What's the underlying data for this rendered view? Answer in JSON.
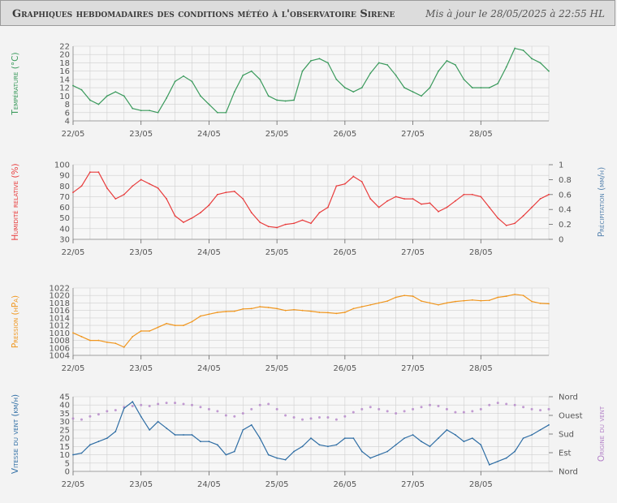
{
  "header": {
    "title": "Graphiques hebdomadaires des conditions météo à l'observatoire Sirene",
    "updated": "Mis à jour le 28/05/2025 à 22:55 HL"
  },
  "colors": {
    "temperature": "#3a9a5c",
    "humidity": "#e83c3c",
    "precipitation": "#5a86b0",
    "pressure": "#f0961e",
    "wind_speed": "#2e6da4",
    "wind_dir": "#b483c8"
  },
  "chart_data": [
    {
      "type": "line",
      "ylabel": "Température (°C)",
      "ylim": [
        4,
        22
      ],
      "yticks": [
        "4",
        "6",
        "8",
        "10",
        "12",
        "14",
        "16",
        "18",
        "20",
        "22"
      ],
      "xticks": [
        "22/05",
        "23/05",
        "24/05",
        "25/05",
        "26/05",
        "27/05",
        "28/05"
      ],
      "grid": true,
      "series": [
        {
          "x": [
            0,
            0.25,
            0.5,
            0.75,
            1,
            1.25,
            1.5,
            1.75,
            2,
            2.25,
            2.5,
            2.75,
            3,
            3.25,
            3.5,
            3.75,
            4,
            4.25,
            4.5,
            4.75,
            5,
            5.25,
            5.5,
            5.75,
            6,
            6.25,
            6.5,
            6.75,
            7,
            7.25,
            7.5,
            7.75,
            8,
            8.25,
            8.5,
            8.75,
            9,
            9.25,
            9.5,
            9.75,
            10,
            10.25,
            10.5,
            10.75,
            11,
            11.25,
            11.5,
            11.75,
            12,
            12.25,
            12.5,
            12.75,
            13,
            13.25,
            13.5,
            13.75,
            14
          ],
          "values": [
            12.5,
            11.5,
            9,
            8,
            10,
            11,
            10,
            7,
            6.5,
            6.5,
            6,
            9.5,
            13.5,
            14.8,
            13.5,
            10,
            8,
            6,
            6,
            11,
            15,
            16,
            14,
            10,
            9,
            8.8,
            9,
            16,
            18.5,
            19,
            18,
            14,
            12,
            11,
            12,
            15.5,
            18,
            17.5,
            15,
            12,
            11,
            10,
            12,
            16,
            18.5,
            17.5,
            14,
            12,
            12,
            12,
            13,
            17,
            21.5,
            21,
            19,
            18,
            16
          ]
        }
      ]
    },
    {
      "type": "line",
      "ylabel": "Humidité relative (%)",
      "ylim": [
        30,
        100
      ],
      "yticks": [
        "30",
        "40",
        "50",
        "60",
        "70",
        "80",
        "90",
        "100"
      ],
      "y2label": "Précipitation (mm/h)",
      "y2lim": [
        0,
        1
      ],
      "y2ticks": [
        "0",
        "0.2",
        "0.4",
        "0.6",
        "0.8",
        "1"
      ],
      "xticks": [
        "22/05",
        "23/05",
        "24/05",
        "25/05",
        "26/05",
        "27/05",
        "28/05"
      ],
      "grid": true,
      "series": [
        {
          "x": [
            0,
            0.25,
            0.5,
            0.75,
            1,
            1.25,
            1.5,
            1.75,
            2,
            2.25,
            2.5,
            2.75,
            3,
            3.25,
            3.5,
            3.75,
            4,
            4.25,
            4.5,
            4.75,
            5,
            5.25,
            5.5,
            5.75,
            6,
            6.25,
            6.5,
            6.75,
            7,
            7.25,
            7.5,
            7.75,
            8,
            8.25,
            8.5,
            8.75,
            9,
            9.25,
            9.5,
            9.75,
            10,
            10.25,
            10.5,
            10.75,
            11,
            11.25,
            11.5,
            11.75,
            12,
            12.25,
            12.5,
            12.75,
            13,
            13.25,
            13.5,
            13.75,
            14
          ],
          "values": [
            74,
            80,
            93,
            93,
            78,
            68,
            72,
            80,
            86,
            82,
            78,
            68,
            52,
            46,
            50,
            55,
            62,
            72,
            74,
            75,
            68,
            55,
            46,
            42,
            41,
            44,
            45,
            48,
            45,
            55,
            60,
            80,
            82,
            89,
            84,
            68,
            60,
            66,
            70,
            68,
            68,
            63,
            64,
            56,
            60,
            66,
            72,
            72,
            70,
            60,
            50,
            43,
            45,
            52,
            60,
            68,
            72
          ]
        }
      ]
    },
    {
      "type": "line",
      "ylabel": "Pression (hPa)",
      "ylim": [
        1004,
        1022
      ],
      "yticks": [
        "1004",
        "1006",
        "1008",
        "1010",
        "1012",
        "1014",
        "1016",
        "1018",
        "1020",
        "1022"
      ],
      "xticks": [
        "22/05",
        "23/05",
        "24/05",
        "25/05",
        "26/05",
        "27/05",
        "28/05"
      ],
      "grid": true,
      "series": [
        {
          "x": [
            0,
            0.25,
            0.5,
            0.75,
            1,
            1.25,
            1.5,
            1.75,
            2,
            2.25,
            2.5,
            2.75,
            3,
            3.25,
            3.5,
            3.75,
            4,
            4.25,
            4.5,
            4.75,
            5,
            5.25,
            5.5,
            5.75,
            6,
            6.25,
            6.5,
            6.75,
            7,
            7.25,
            7.5,
            7.75,
            8,
            8.25,
            8.5,
            8.75,
            9,
            9.25,
            9.5,
            9.75,
            10,
            10.25,
            10.5,
            10.75,
            11,
            11.25,
            11.5,
            11.75,
            12,
            12.25,
            12.5,
            12.75,
            13,
            13.25,
            13.5,
            13.75,
            14
          ],
          "values": [
            1010,
            1009,
            1008,
            1008,
            1007.5,
            1007.2,
            1006.2,
            1009,
            1010.5,
            1010.5,
            1011.5,
            1012.5,
            1012,
            1012,
            1013,
            1014.5,
            1015,
            1015.5,
            1015.7,
            1015.8,
            1016.4,
            1016.5,
            1017,
            1016.8,
            1016.5,
            1016,
            1016.2,
            1016,
            1015.8,
            1015.5,
            1015.4,
            1015.2,
            1015.5,
            1016.5,
            1017,
            1017.5,
            1018,
            1018.5,
            1019.5,
            1020,
            1019.8,
            1018.5,
            1018,
            1017.5,
            1018,
            1018.4,
            1018.6,
            1018.8,
            1018.6,
            1018.7,
            1019.5,
            1019.8,
            1020.3,
            1020,
            1018.4,
            1017.9,
            1017.8
          ]
        }
      ]
    },
    {
      "type": "line",
      "ylabel": "Vitesse du vent (km/h)",
      "ylim": [
        0,
        45
      ],
      "yticks": [
        "0",
        "5",
        "10",
        "15",
        "20",
        "25",
        "30",
        "35",
        "40",
        "45"
      ],
      "y2label": "Origine du vent",
      "y2ticks": [
        "Nord",
        "Est",
        "Sud",
        "Ouest",
        "Nord"
      ],
      "xticks": [
        "22/05",
        "23/05",
        "24/05",
        "25/05",
        "26/05",
        "27/05",
        "28/05"
      ],
      "grid": true,
      "series": [
        {
          "name": "speed",
          "x": [
            0,
            0.25,
            0.5,
            0.75,
            1,
            1.25,
            1.5,
            1.75,
            2,
            2.25,
            2.5,
            2.75,
            3,
            3.25,
            3.5,
            3.75,
            4,
            4.25,
            4.5,
            4.75,
            5,
            5.25,
            5.5,
            5.75,
            6,
            6.25,
            6.5,
            6.75,
            7,
            7.25,
            7.5,
            7.75,
            8,
            8.25,
            8.5,
            8.75,
            9,
            9.25,
            9.5,
            9.75,
            10,
            10.25,
            10.5,
            10.75,
            11,
            11.25,
            11.5,
            11.75,
            12,
            12.25,
            12.5,
            12.75,
            13,
            13.25,
            13.5,
            13.75,
            14
          ],
          "values": [
            10,
            11,
            16,
            18,
            20,
            24,
            38,
            42,
            33,
            25,
            30,
            26,
            22,
            22,
            22,
            18,
            18,
            16,
            10,
            12,
            25,
            28,
            20,
            10,
            8,
            7,
            12,
            15,
            20,
            16,
            15,
            16,
            20,
            20,
            12,
            8,
            10,
            12,
            16,
            20,
            22,
            18,
            15,
            20,
            25,
            22,
            18,
            20,
            16,
            4,
            6,
            8,
            12,
            20,
            22,
            25,
            28
          ]
        },
        {
          "name": "direction",
          "x": [
            0,
            0.25,
            0.5,
            0.75,
            1,
            1.25,
            1.5,
            1.75,
            2,
            2.25,
            2.5,
            2.75,
            3,
            3.25,
            3.5,
            3.75,
            4,
            4.25,
            4.5,
            4.75,
            5,
            5.25,
            5.5,
            5.75,
            6,
            6.25,
            6.5,
            6.75,
            7,
            7.25,
            7.5,
            7.75,
            8,
            8.25,
            8.5,
            8.75,
            9,
            9.25,
            9.5,
            9.75,
            10,
            10.25,
            10.5,
            10.75,
            11,
            11.25,
            11.5,
            11.75,
            12,
            12.25,
            12.5,
            12.75,
            13,
            13.25,
            13.5,
            13.75,
            14
          ],
          "values": [
            255,
            250,
            265,
            275,
            290,
            295,
            310,
            315,
            320,
            315,
            325,
            330,
            330,
            325,
            320,
            310,
            300,
            290,
            270,
            265,
            280,
            300,
            320,
            325,
            300,
            270,
            260,
            250,
            255,
            260,
            260,
            250,
            265,
            285,
            300,
            310,
            300,
            290,
            280,
            290,
            300,
            310,
            320,
            315,
            300,
            285,
            285,
            290,
            300,
            320,
            330,
            325,
            320,
            310,
            300,
            295,
            300
          ]
        }
      ]
    }
  ]
}
